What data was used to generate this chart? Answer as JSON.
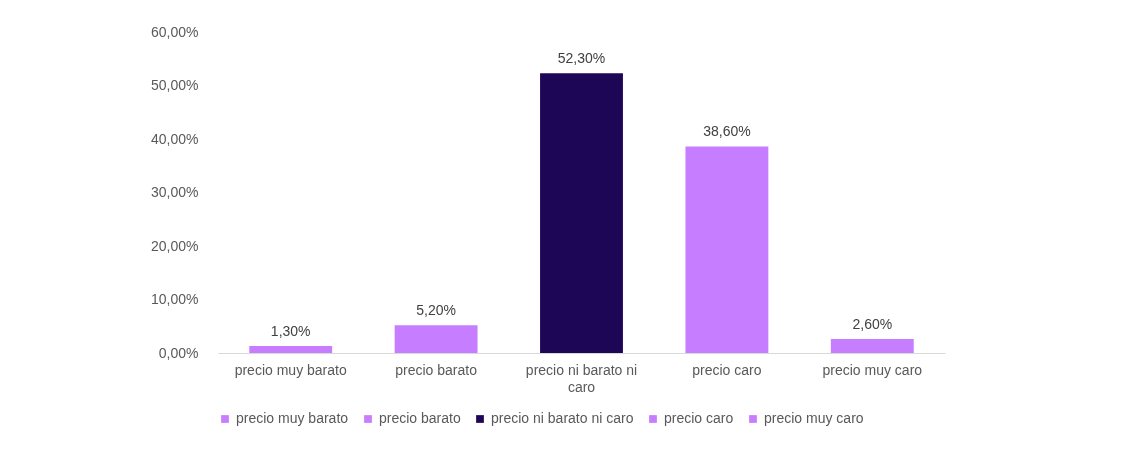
{
  "chart_data": {
    "type": "bar",
    "categories": [
      "precio muy barato",
      "precio barato",
      "precio ni barato ni caro",
      "precio caro",
      "precio muy caro"
    ],
    "series": [
      {
        "name": "precio muy barato",
        "color": "#c77dff",
        "values": [
          1.3,
          null,
          null,
          null,
          null
        ],
        "value_labels": [
          "1,30%",
          null,
          null,
          null,
          null
        ]
      },
      {
        "name": "precio barato",
        "color": "#c77dff",
        "values": [
          null,
          5.2,
          null,
          null,
          null
        ],
        "value_labels": [
          null,
          "5,20%",
          null,
          null,
          null
        ]
      },
      {
        "name": "precio ni barato ni caro",
        "color": "#1e0657",
        "values": [
          null,
          null,
          52.3,
          null,
          null
        ],
        "value_labels": [
          null,
          null,
          "52,30%",
          null,
          null
        ]
      },
      {
        "name": "precio caro",
        "color": "#c77dff",
        "values": [
          null,
          null,
          null,
          38.6,
          null
        ],
        "value_labels": [
          null,
          null,
          null,
          "38,60%",
          null
        ]
      },
      {
        "name": "precio muy caro",
        "color": "#c77dff",
        "values": [
          null,
          null,
          null,
          null,
          2.6
        ],
        "value_labels": [
          null,
          null,
          null,
          null,
          "2,60%"
        ]
      }
    ],
    "ylim": [
      0,
      60
    ],
    "yticks": [
      {
        "value": 0,
        "label": "0,00%"
      },
      {
        "value": 10,
        "label": "10,00%"
      },
      {
        "value": 20,
        "label": "20,00%"
      },
      {
        "value": 30,
        "label": "30,00%"
      },
      {
        "value": 40,
        "label": "40,00%"
      },
      {
        "value": 50,
        "label": "50,00%"
      },
      {
        "value": 60,
        "label": "60,00%"
      }
    ],
    "legend": "bottom"
  }
}
